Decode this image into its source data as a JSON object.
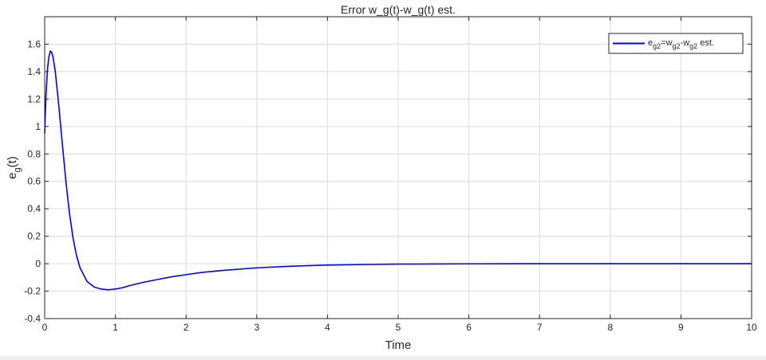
{
  "chart_data": {
    "type": "line",
    "title": "Error w_g(t)-w_g(t) est.",
    "xlabel": "Time",
    "ylabel": {
      "base": "e",
      "sub": "g",
      "suffix": "(t)"
    },
    "xlim": [
      0,
      10
    ],
    "ylim": [
      -0.4,
      1.8
    ],
    "xticks": [
      0,
      1,
      2,
      3,
      4,
      5,
      6,
      7,
      8,
      9,
      10
    ],
    "yticks": [
      -0.4,
      -0.2,
      0,
      0.2,
      0.4,
      0.6,
      0.8,
      1,
      1.2,
      1.4,
      1.6
    ],
    "xtick_labels": [
      "0",
      "1",
      "2",
      "3",
      "4",
      "5",
      "6",
      "7",
      "8",
      "9",
      "10"
    ],
    "ytick_labels": [
      "-0.4",
      "-0.2",
      "0",
      "0.2",
      "0.4",
      "0.6",
      "0.8",
      "1",
      "1.2",
      "1.4",
      "1.6"
    ],
    "grid": true,
    "legend_position": "top-right",
    "legend": {
      "parts": [
        {
          "text": "e",
          "sub": false
        },
        {
          "text": "g2",
          "sub": true
        },
        {
          "text": "=w",
          "sub": false
        },
        {
          "text": "g2",
          "sub": true
        },
        {
          "text": "-w",
          "sub": false
        },
        {
          "text": "g2",
          "sub": true
        },
        {
          "text": " est.",
          "sub": false
        }
      ]
    },
    "series": [
      {
        "color": "#0000ff",
        "x": [
          0,
          0.02,
          0.04,
          0.06,
          0.08,
          0.1,
          0.12,
          0.15,
          0.2,
          0.25,
          0.3,
          0.35,
          0.4,
          0.45,
          0.5,
          0.6,
          0.7,
          0.8,
          0.9,
          1.0,
          1.1,
          1.2,
          1.4,
          1.6,
          1.8,
          2.0,
          2.2,
          2.5,
          3.0,
          3.5,
          4.0,
          4.5,
          5.0,
          5.5,
          6.0,
          7.0,
          8.0,
          9.0,
          10.0
        ],
        "y": [
          0.95,
          1.25,
          1.42,
          1.51,
          1.55,
          1.54,
          1.5,
          1.4,
          1.15,
          0.87,
          0.6,
          0.37,
          0.19,
          0.06,
          -0.03,
          -0.13,
          -0.17,
          -0.185,
          -0.19,
          -0.185,
          -0.175,
          -0.16,
          -0.135,
          -0.115,
          -0.095,
          -0.08,
          -0.065,
          -0.05,
          -0.03,
          -0.018,
          -0.01,
          -0.006,
          -0.003,
          -0.002,
          -0.001,
          0.0,
          0.0,
          0.0,
          0.0
        ]
      }
    ]
  }
}
